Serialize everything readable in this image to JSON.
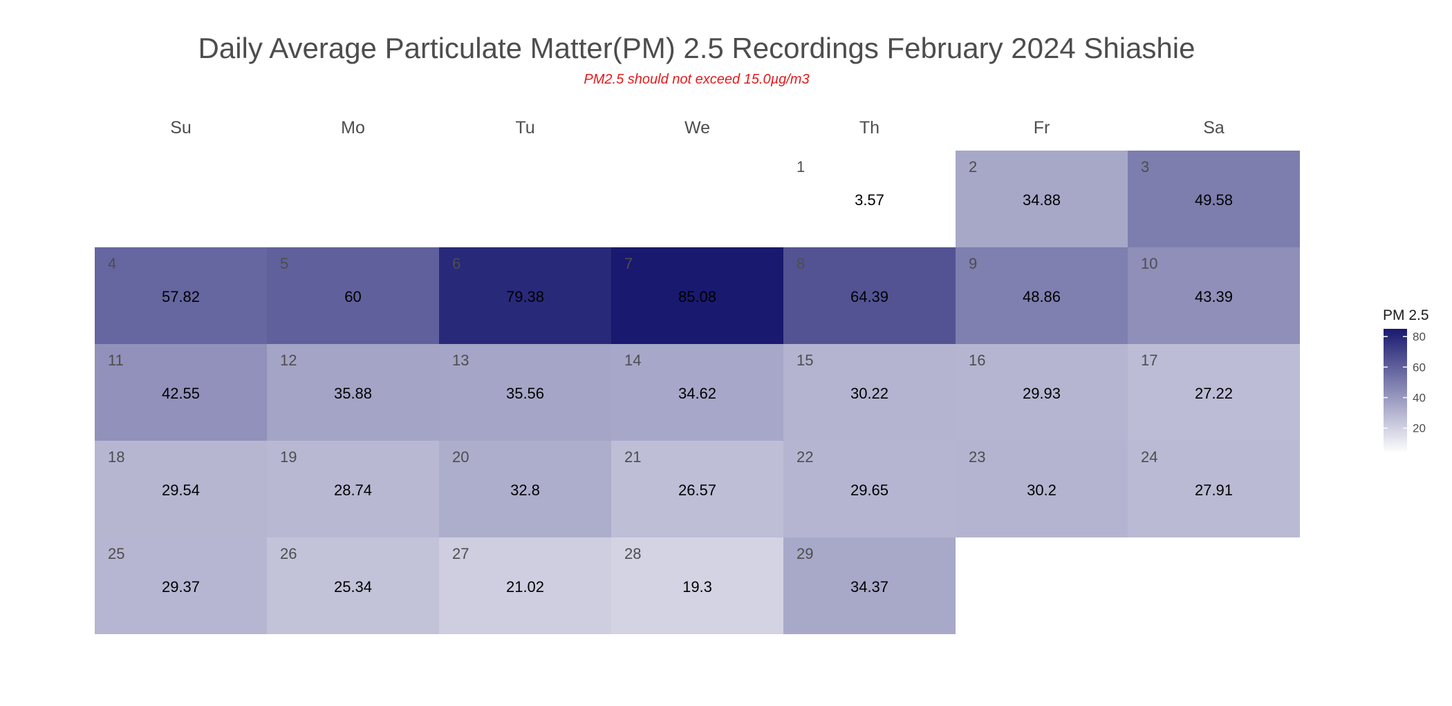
{
  "chart_data": {
    "type": "heatmap",
    "title": "Daily Average Particulate Matter(PM) 2.5 Recordings February 2024 Shiashie",
    "subtitle": "PM2.5 should not exceed 15.0µg/m3",
    "weekdays": [
      "Su",
      "Mo",
      "Tu",
      "We",
      "Th",
      "Fr",
      "Sa"
    ],
    "first_weekday_index": 4,
    "days": [
      {
        "day": 1,
        "value": 3.57
      },
      {
        "day": 2,
        "value": 34.88
      },
      {
        "day": 3,
        "value": 49.58
      },
      {
        "day": 4,
        "value": 57.82
      },
      {
        "day": 5,
        "value": 60
      },
      {
        "day": 6,
        "value": 79.38
      },
      {
        "day": 7,
        "value": 85.08
      },
      {
        "day": 8,
        "value": 64.39
      },
      {
        "day": 9,
        "value": 48.86
      },
      {
        "day": 10,
        "value": 43.39
      },
      {
        "day": 11,
        "value": 42.55
      },
      {
        "day": 12,
        "value": 35.88
      },
      {
        "day": 13,
        "value": 35.56
      },
      {
        "day": 14,
        "value": 34.62
      },
      {
        "day": 15,
        "value": 30.22
      },
      {
        "day": 16,
        "value": 29.93
      },
      {
        "day": 17,
        "value": 27.22
      },
      {
        "day": 18,
        "value": 29.54
      },
      {
        "day": 19,
        "value": 28.74
      },
      {
        "day": 20,
        "value": 32.8
      },
      {
        "day": 21,
        "value": 26.57
      },
      {
        "day": 22,
        "value": 29.65
      },
      {
        "day": 23,
        "value": 30.2
      },
      {
        "day": 24,
        "value": 27.91
      },
      {
        "day": 25,
        "value": 29.37
      },
      {
        "day": 26,
        "value": 25.34
      },
      {
        "day": 27,
        "value": 21.02
      },
      {
        "day": 28,
        "value": 19.3
      },
      {
        "day": 29,
        "value": 34.37
      }
    ],
    "legend": {
      "title": "PM 2.5",
      "ticks": [
        20,
        40,
        60,
        80
      ],
      "range": [
        3.57,
        85.08
      ],
      "color_low": "#ffffff",
      "color_high": "#191970"
    }
  }
}
